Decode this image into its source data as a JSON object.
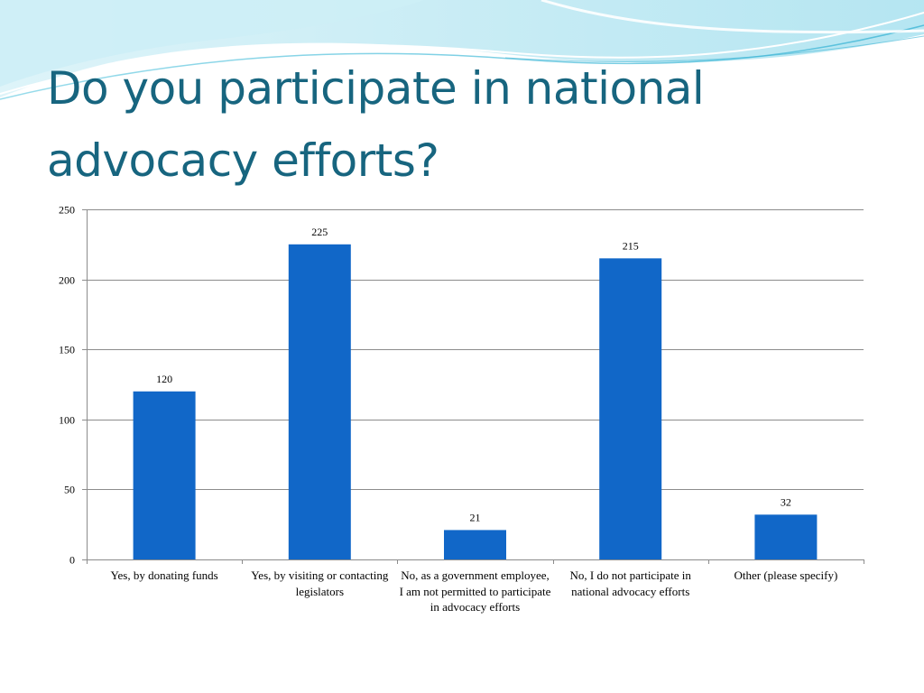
{
  "slide": {
    "title": "Do you participate in national\nadvocacy efforts?"
  },
  "colors": {
    "title": "#17657f",
    "bar": "#1167c8",
    "gridline": "#8c8c8c",
    "wave_light": "#bfe9f3",
    "wave_mid": "#7fd3e6",
    "wave_accent": "#3fb6d6"
  },
  "chart_data": {
    "type": "bar",
    "categories": [
      "Yes, by donating funds",
      "Yes, by visiting or contacting legislators",
      "No, as a government employee, I am not permitted to participate in advocacy efforts",
      "No, I do not participate in national advocacy efforts",
      "Other (please specify)"
    ],
    "values": [
      120,
      225,
      21,
      215,
      32
    ],
    "data_labels": [
      "120",
      "225",
      "21",
      "215",
      "32"
    ],
    "ylim": [
      0,
      250
    ],
    "yticks": [
      0,
      50,
      100,
      150,
      200,
      250
    ],
    "ytick_labels": [
      "0",
      "50",
      "100",
      "150",
      "200",
      "250"
    ],
    "grid": true,
    "legend": false,
    "title": "",
    "xlabel": "",
    "ylabel": ""
  }
}
